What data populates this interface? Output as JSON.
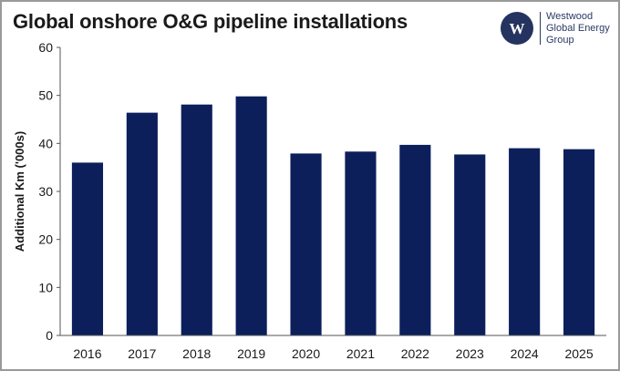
{
  "chart_data": {
    "type": "bar",
    "title": "Global onshore O&G pipeline installations",
    "ylabel": "Additional Km ('000s)",
    "xlabel": "",
    "categories": [
      "2016",
      "2017",
      "2018",
      "2019",
      "2020",
      "2021",
      "2022",
      "2023",
      "2024",
      "2025"
    ],
    "values": [
      36.0,
      46.4,
      48.1,
      49.8,
      37.9,
      38.3,
      39.7,
      37.7,
      39.0,
      38.8
    ],
    "ylim": [
      0,
      60
    ],
    "yticks": [
      0,
      10,
      20,
      30,
      40,
      50,
      60
    ],
    "grid": false,
    "legend": "none",
    "bar_color": "#0c1f5b"
  },
  "logo": {
    "letter": "W",
    "lines": [
      "Westwood",
      "Global Energy",
      "Group"
    ],
    "color": "#2a3a66"
  }
}
